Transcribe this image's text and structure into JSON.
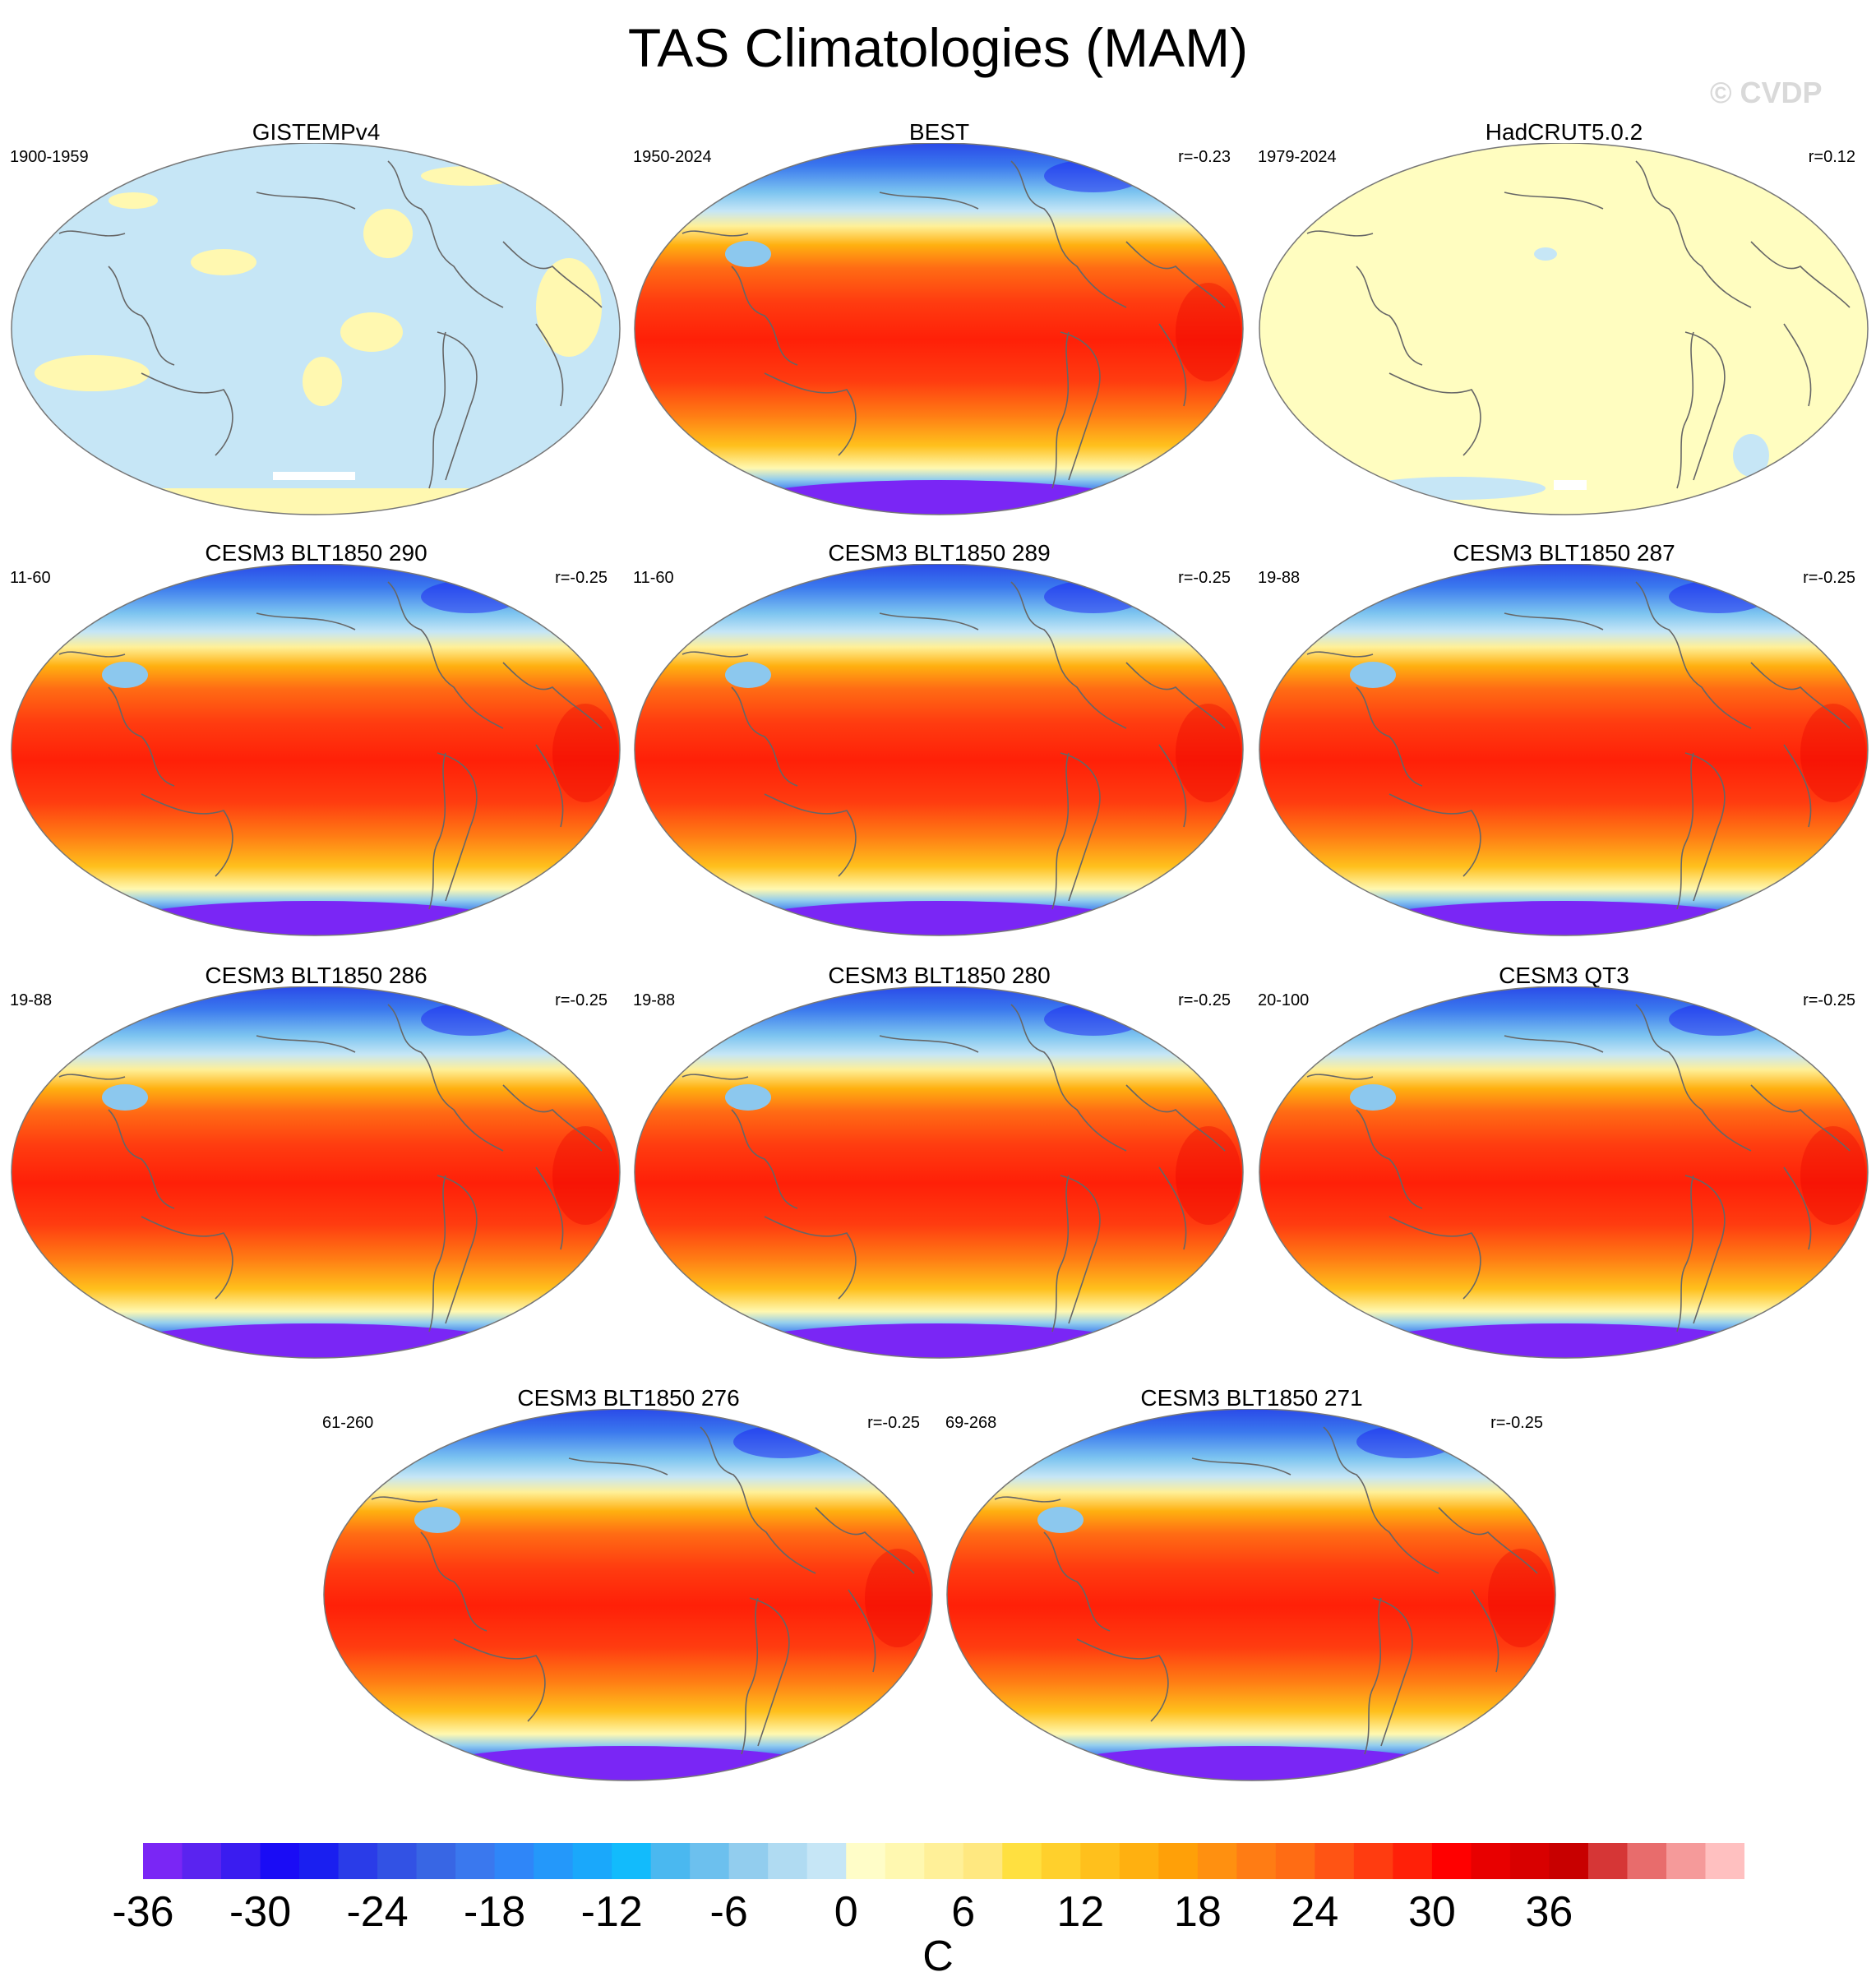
{
  "title": "TAS Climatologies (MAM)",
  "watermark": "© CVDP",
  "panels": [
    {
      "title": "GISTEMPv4",
      "period": "1900-1959",
      "r": "",
      "style": "gistemp"
    },
    {
      "title": "BEST",
      "period": "1950-2024",
      "r": "r=-0.23",
      "style": "temp"
    },
    {
      "title": "HadCRUT5.0.2",
      "period": "1979-2024",
      "r": "r=0.12",
      "style": "hadcrut"
    },
    {
      "title": "CESM3 BLT1850 290",
      "period": "11-60",
      "r": "r=-0.25",
      "style": "temp"
    },
    {
      "title": "CESM3 BLT1850 289",
      "period": "11-60",
      "r": "r=-0.25",
      "style": "temp"
    },
    {
      "title": "CESM3 BLT1850 287",
      "period": "19-88",
      "r": "r=-0.25",
      "style": "temp"
    },
    {
      "title": "CESM3 BLT1850 286",
      "period": "19-88",
      "r": "r=-0.25",
      "style": "temp"
    },
    {
      "title": "CESM3 BLT1850 280",
      "period": "19-88",
      "r": "r=-0.25",
      "style": "temp"
    },
    {
      "title": "CESM3 QT3",
      "period": "20-100",
      "r": "r=-0.25",
      "style": "temp"
    },
    {
      "title": "CESM3 BLT1850 276",
      "period": "61-260",
      "r": "r=-0.25",
      "style": "temp"
    },
    {
      "title": "CESM3 BLT1850 271",
      "period": "69-268",
      "r": "r=-0.25",
      "style": "temp"
    }
  ],
  "colorbar": {
    "colors": [
      "#7a26f5",
      "#5a23f0",
      "#3a1cf0",
      "#1a0cf5",
      "#1a1ff0",
      "#2a3ce8",
      "#3252e4",
      "#3866e4",
      "#3a78ee",
      "#2f86f8",
      "#2498fa",
      "#1aa8fb",
      "#12bbfc",
      "#4ab8f0",
      "#6cc0ee",
      "#92cdee",
      "#b0dbf2",
      "#c6e6f6",
      "#fffdc8",
      "#fff8b0",
      "#fff098",
      "#ffe880",
      "#ffe040",
      "#ffd02c",
      "#ffc01c",
      "#ffb010",
      "#ffa008",
      "#ff9010",
      "#ff7c14",
      "#ff6c14",
      "#ff5414",
      "#ff3c10",
      "#ff2008",
      "#ff0000",
      "#e80000",
      "#d80000",
      "#c80000",
      "#d63636",
      "#e86c6c",
      "#f59a9a",
      "#ffc0c0"
    ],
    "tick_labels": [
      "-36",
      "-30",
      "-24",
      "-18",
      "-12",
      "-6",
      "0",
      "6",
      "12",
      "18",
      "24",
      "30",
      "36"
    ],
    "units": "C"
  }
}
